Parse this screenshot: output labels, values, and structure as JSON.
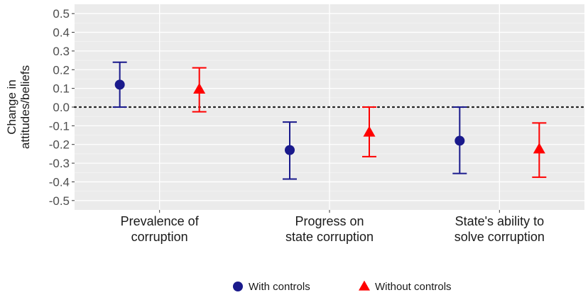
{
  "chart_data": {
    "type": "scatter",
    "title": "",
    "xlabel": "",
    "ylabel": "Change in attitudes/beliefs",
    "ylabel_lines": [
      "Change in",
      "attitudes/beliefs"
    ],
    "ylim": [
      -0.55,
      0.55
    ],
    "y_ticks": [
      {
        "value": 0.5,
        "label": "0.5"
      },
      {
        "value": 0.4,
        "label": "0.4"
      },
      {
        "value": 0.3,
        "label": "0.3"
      },
      {
        "value": 0.2,
        "label": "0.2"
      },
      {
        "value": 0.1,
        "label": "0.1"
      },
      {
        "value": 0.0,
        "label": "0.0"
      },
      {
        "value": -0.1,
        "label": "-0.1"
      },
      {
        "value": -0.2,
        "label": "-0.2"
      },
      {
        "value": -0.3,
        "label": "-0.3"
      },
      {
        "value": -0.4,
        "label": "-0.4"
      },
      {
        "value": -0.5,
        "label": "-0.5"
      }
    ],
    "grid": true,
    "reference_line": {
      "y": 0.0,
      "style": "dotted"
    },
    "legend_position": "bottom",
    "categories": [
      {
        "id": "prevalence",
        "lines": [
          "Prevalence of",
          "corruption"
        ]
      },
      {
        "id": "progress",
        "lines": [
          "Progress on",
          "state corruption"
        ]
      },
      {
        "id": "ability",
        "lines": [
          "State's ability to",
          "solve corruption"
        ]
      }
    ],
    "series": [
      {
        "name": "With controls",
        "color": "#1a1a8c",
        "marker": "circle",
        "estimates": [
          0.12,
          -0.23,
          -0.18
        ],
        "ci_low": [
          0.0,
          -0.385,
          -0.355
        ],
        "ci_high": [
          0.24,
          -0.08,
          0.0
        ]
      },
      {
        "name": "Without controls",
        "color": "#ff0000",
        "marker": "triangle",
        "estimates": [
          0.095,
          -0.135,
          -0.225
        ],
        "ci_low": [
          -0.025,
          -0.265,
          -0.375
        ],
        "ci_high": [
          0.21,
          0.0,
          -0.085
        ]
      }
    ]
  }
}
